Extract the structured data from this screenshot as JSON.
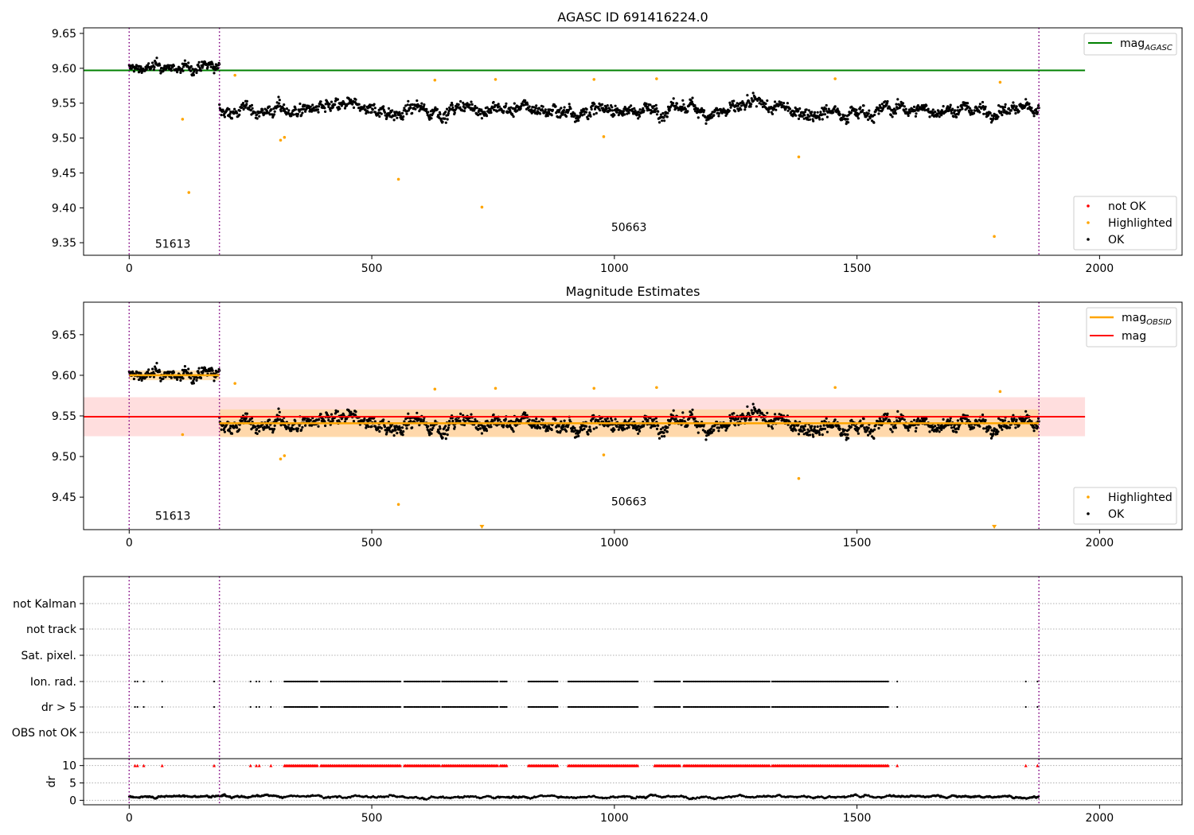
{
  "chart_data": [
    {
      "type": "scatter",
      "title": "AGASC ID 691416224.0",
      "xlim": [
        -94,
        2170
      ],
      "ylim": [
        9.332,
        9.658
      ],
      "xticks": [
        0,
        500,
        1000,
        1500,
        2000
      ],
      "yticks": [
        9.35,
        9.4,
        9.45,
        9.5,
        9.55,
        9.6,
        9.65
      ],
      "ytick_labels": [
        "9.35",
        "9.40",
        "9.45",
        "9.50",
        "9.55",
        "9.60",
        "9.65"
      ],
      "obsid_boundaries": [
        0,
        186,
        1875
      ],
      "obsid_labels": [
        {
          "text": "51613",
          "x": 90,
          "y": 9.343
        },
        {
          "text": "50663",
          "x": 1030,
          "y": 9.367
        }
      ],
      "lines": [
        {
          "name": "mag_AGASC",
          "color": "#008000",
          "y": 9.597,
          "x": [
            -94,
            1970
          ]
        }
      ],
      "legend_lines": [
        {
          "label_main": "mag",
          "label_sub": "AGASC",
          "color": "#008000"
        }
      ],
      "legend_points": [
        {
          "label": "not OK",
          "color": "#ff0000"
        },
        {
          "label": "Highlighted",
          "color": "#ffa500"
        },
        {
          "label": "OK",
          "color": "#000000"
        }
      ],
      "ok_series": {
        "segments": [
          {
            "x0": 0,
            "x1": 186,
            "base": 9.6,
            "amp": 0.014
          },
          {
            "x0": 186,
            "x1": 1875,
            "base": 9.541,
            "amp": 0.018
          }
        ],
        "color": "#000000"
      },
      "highlighted_points": [
        {
          "x": 110,
          "y": 9.527
        },
        {
          "x": 123,
          "y": 9.422
        },
        {
          "x": 218,
          "y": 9.59
        },
        {
          "x": 312,
          "y": 9.497
        },
        {
          "x": 320,
          "y": 9.501
        },
        {
          "x": 555,
          "y": 9.441
        },
        {
          "x": 630,
          "y": 9.583
        },
        {
          "x": 727,
          "y": 9.401
        },
        {
          "x": 755,
          "y": 9.584
        },
        {
          "x": 958,
          "y": 9.584
        },
        {
          "x": 978,
          "y": 9.502
        },
        {
          "x": 1087,
          "y": 9.585
        },
        {
          "x": 1380,
          "y": 9.473
        },
        {
          "x": 1455,
          "y": 9.585
        },
        {
          "x": 1783,
          "y": 9.359
        },
        {
          "x": 1795,
          "y": 9.58
        }
      ]
    },
    {
      "type": "scatter",
      "title": "Magnitude Estimates",
      "xlim": [
        -94,
        2170
      ],
      "ylim": [
        9.41,
        9.69
      ],
      "xticks": [
        0,
        500,
        1000,
        1500,
        2000
      ],
      "yticks": [
        9.45,
        9.5,
        9.55,
        9.6,
        9.65
      ],
      "ytick_labels": [
        "9.45",
        "9.50",
        "9.55",
        "9.60",
        "9.65"
      ],
      "obsid_boundaries": [
        0,
        186,
        1875
      ],
      "obsid_labels": [
        {
          "text": "51613",
          "x": 90,
          "y": 9.422
        },
        {
          "text": "50663",
          "x": 1030,
          "y": 9.44
        }
      ],
      "mag_line": {
        "y": 9.549,
        "band": [
          9.525,
          9.573
        ],
        "x": [
          -94,
          1970
        ],
        "color": "#ff0000",
        "band_color": "#ffcccc"
      },
      "obsid_mags": [
        {
          "x0": 0,
          "x1": 186,
          "y": 9.6,
          "band": [
            9.594,
            9.606
          ]
        },
        {
          "x0": 186,
          "x1": 1875,
          "y": 9.541,
          "band": [
            9.524,
            9.558
          ]
        }
      ],
      "obsid_color": "#ffa500",
      "legend_lines": [
        {
          "label_main": "mag",
          "label_sub": "OBSID",
          "color": "#ffa500"
        },
        {
          "label_main": "mag",
          "label_sub": "",
          "color": "#ff0000"
        }
      ],
      "legend_points": [
        {
          "label": "Highlighted",
          "color": "#ffa500"
        },
        {
          "label": "OK",
          "color": "#000000"
        }
      ],
      "highlighted_points": [
        {
          "x": 110,
          "y": 9.527
        },
        {
          "x": 218,
          "y": 9.59
        },
        {
          "x": 312,
          "y": 9.497
        },
        {
          "x": 320,
          "y": 9.501
        },
        {
          "x": 555,
          "y": 9.441
        },
        {
          "x": 630,
          "y": 9.583
        },
        {
          "x": 755,
          "y": 9.584
        },
        {
          "x": 958,
          "y": 9.584
        },
        {
          "x": 978,
          "y": 9.502
        },
        {
          "x": 1087,
          "y": 9.585
        },
        {
          "x": 1380,
          "y": 9.473
        },
        {
          "x": 1455,
          "y": 9.585
        },
        {
          "x": 1795,
          "y": 9.58
        }
      ],
      "offscale_markers": [
        {
          "x": 727
        },
        {
          "x": 1783
        }
      ]
    },
    {
      "type": "scatter",
      "title": "",
      "xlim": [
        -94,
        2170
      ],
      "xticks": [
        0,
        500,
        1000,
        1500,
        2000
      ],
      "flag_rows": [
        "not Kalman",
        "not track",
        "Sat. pixel.",
        "Ion. rad.",
        "dr > 5",
        "OBS not OK"
      ],
      "flagged_ranges": [
        [
          320,
          388
        ],
        [
          395,
          560
        ],
        [
          567,
          640
        ],
        [
          645,
          760
        ],
        [
          765,
          780
        ],
        [
          823,
          885
        ],
        [
          905,
          1050
        ],
        [
          1083,
          1135
        ],
        [
          1143,
          1320
        ],
        [
          1325,
          1565
        ]
      ],
      "flagged_points": [
        12,
        17,
        30,
        68,
        175,
        250,
        262,
        268,
        292,
        1583,
        1848,
        1872
      ],
      "obsid_boundaries": [
        0,
        186,
        1875
      ],
      "dr": {
        "ylabel": "dr",
        "yticks": [
          0,
          5,
          10
        ],
        "ylim": [
          -0.6,
          11.3
        ],
        "cap": 10,
        "base": 1.0,
        "amp": 0.6,
        "color": "#000000",
        "cap_color": "#ff0000"
      }
    }
  ]
}
